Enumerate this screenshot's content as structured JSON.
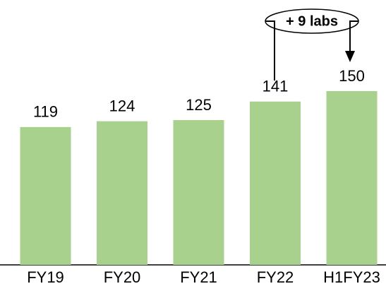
{
  "chart_data": {
    "type": "bar",
    "categories": [
      "FY19",
      "FY20",
      "FY21",
      "FY22",
      "H1FY23"
    ],
    "values": [
      119,
      124,
      125,
      141,
      150
    ],
    "color": "#a9d18e",
    "annotations": [
      "+ 9 labs"
    ]
  }
}
